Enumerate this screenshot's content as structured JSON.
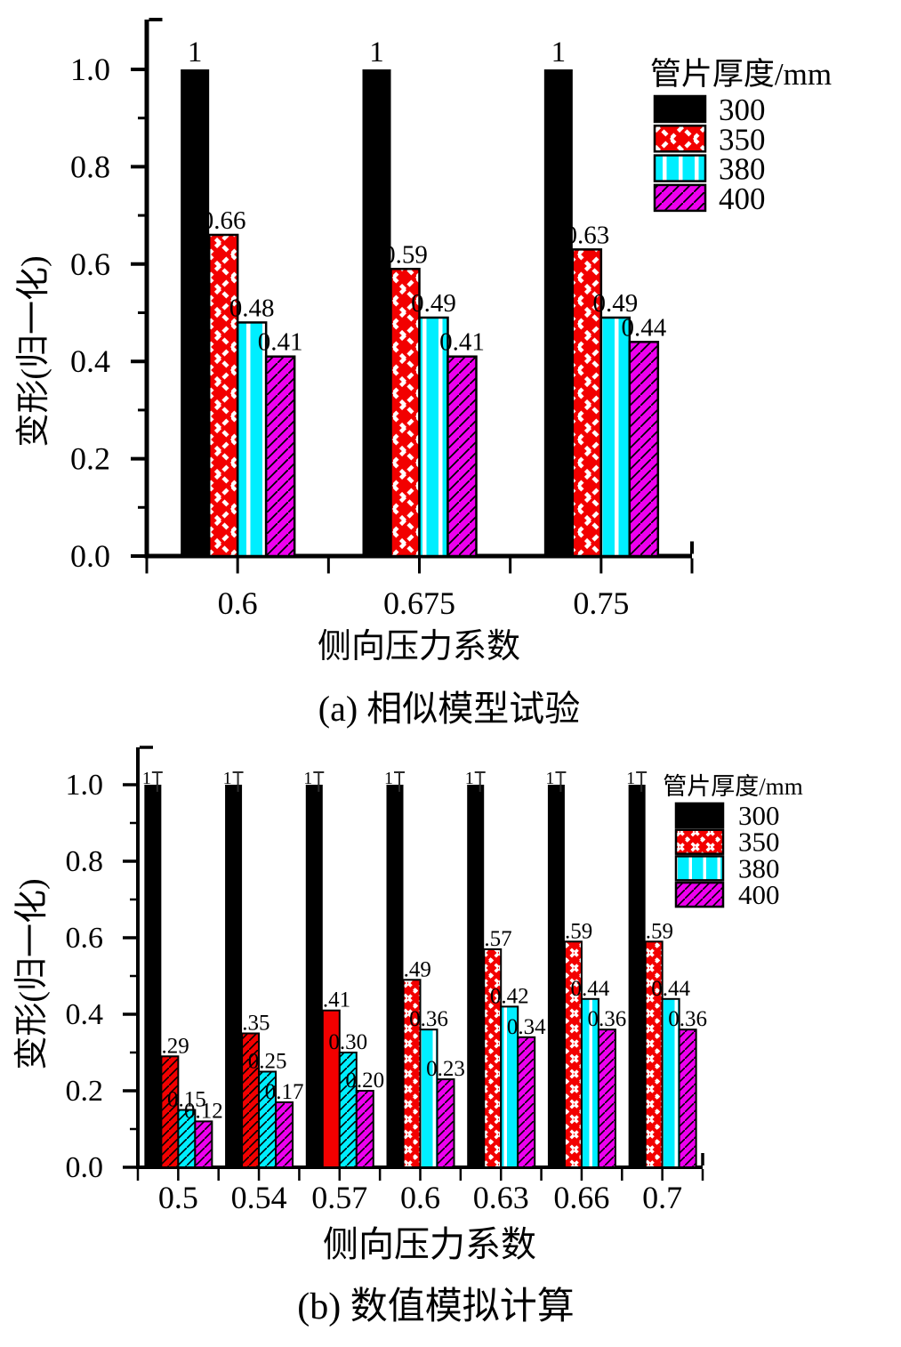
{
  "colors": {
    "series_300": "#000000",
    "series_350": "#f20000",
    "series_380": "#00eeff",
    "series_400": "#ee00ee",
    "axis": "#000000",
    "label": "#000000"
  },
  "chart_data": [
    {
      "type": "bar",
      "key": "a",
      "caption": "(a)  相似模型试验",
      "xlabel": "侧向压力系数",
      "ylabel": "变形(归一化)",
      "legend_title": "管片厚度/mm",
      "legend_position": "top-right",
      "ylim": [
        0,
        1.0
      ],
      "yticks": [
        "0.0",
        "0.2",
        "0.4",
        "0.6",
        "0.8",
        "1.0"
      ],
      "categories": [
        "0.6",
        "0.675",
        "0.75"
      ],
      "series": [
        {
          "name": "300",
          "style": "black-solid",
          "values": [
            1,
            1,
            1
          ],
          "labels": [
            "1",
            "1",
            "1"
          ]
        },
        {
          "name": "350",
          "style": "red-cross",
          "values": [
            0.66,
            0.59,
            0.63
          ],
          "labels": [
            "0.66",
            "0.59",
            "0.63"
          ]
        },
        {
          "name": "380",
          "style": "cyan-vert",
          "values": [
            0.48,
            0.49,
            0.49
          ],
          "labels": [
            "0.48",
            "0.49",
            "0.49"
          ]
        },
        {
          "name": "400",
          "style": "magenta-diag",
          "values": [
            0.41,
            0.41,
            0.44
          ],
          "labels": [
            "0.41",
            "0.41",
            "0.44"
          ]
        }
      ]
    },
    {
      "type": "bar",
      "key": "b",
      "caption": "(b)  数值模拟计算",
      "xlabel": "侧向压力系数",
      "ylabel": "变形(归一化)",
      "legend_title": "管片厚度/mm",
      "legend_position": "top-right",
      "ylim": [
        0,
        1.0
      ],
      "yticks": [
        "0.0",
        "0.2",
        "0.4",
        "0.6",
        "0.8",
        "1.0"
      ],
      "categories": [
        "0.5",
        "0.54",
        "0.57",
        "0.6",
        "0.63",
        "0.66",
        "0.7"
      ],
      "series": [
        {
          "name": "300",
          "style": "black-solid",
          "whisker": true,
          "values": [
            1,
            1,
            1,
            1,
            1,
            1,
            1
          ],
          "labels": [
            "1",
            "1",
            "1",
            "1",
            "1",
            "1",
            "1"
          ]
        },
        {
          "name": "350",
          "style": "red-cross",
          "style_per_bar": [
            "red-diag",
            "red-diag",
            "red-solid",
            "red-cross",
            "red-cross",
            "red-cross",
            "red-cross"
          ],
          "values": [
            0.29,
            0.35,
            0.41,
            0.49,
            0.57,
            0.59,
            0.59
          ],
          "labels": [
            "0.29",
            "0.35",
            "0.41",
            "0.49",
            "0.57",
            "0.59",
            "0.59"
          ]
        },
        {
          "name": "380",
          "style": "cyan-vert",
          "style_per_bar": [
            "cyan-diag",
            "cyan-diag",
            "cyan-diag",
            "cyan-vert",
            "cyan-vert",
            "cyan-vert",
            "cyan-vert"
          ],
          "values": [
            0.15,
            0.25,
            0.3,
            0.36,
            0.42,
            0.44,
            0.44
          ],
          "labels": [
            "0.15",
            "0.25",
            "0.30",
            "0.36",
            "0.42",
            "0.44",
            "0.44"
          ]
        },
        {
          "name": "400",
          "style": "magenta-diag",
          "values": [
            0.12,
            0.17,
            0.2,
            0.23,
            0.34,
            0.36,
            0.36
          ],
          "labels": [
            "0.12",
            "0.17",
            "0.20",
            "0.23",
            "0.34",
            "0.36",
            "0.36"
          ]
        }
      ]
    }
  ]
}
